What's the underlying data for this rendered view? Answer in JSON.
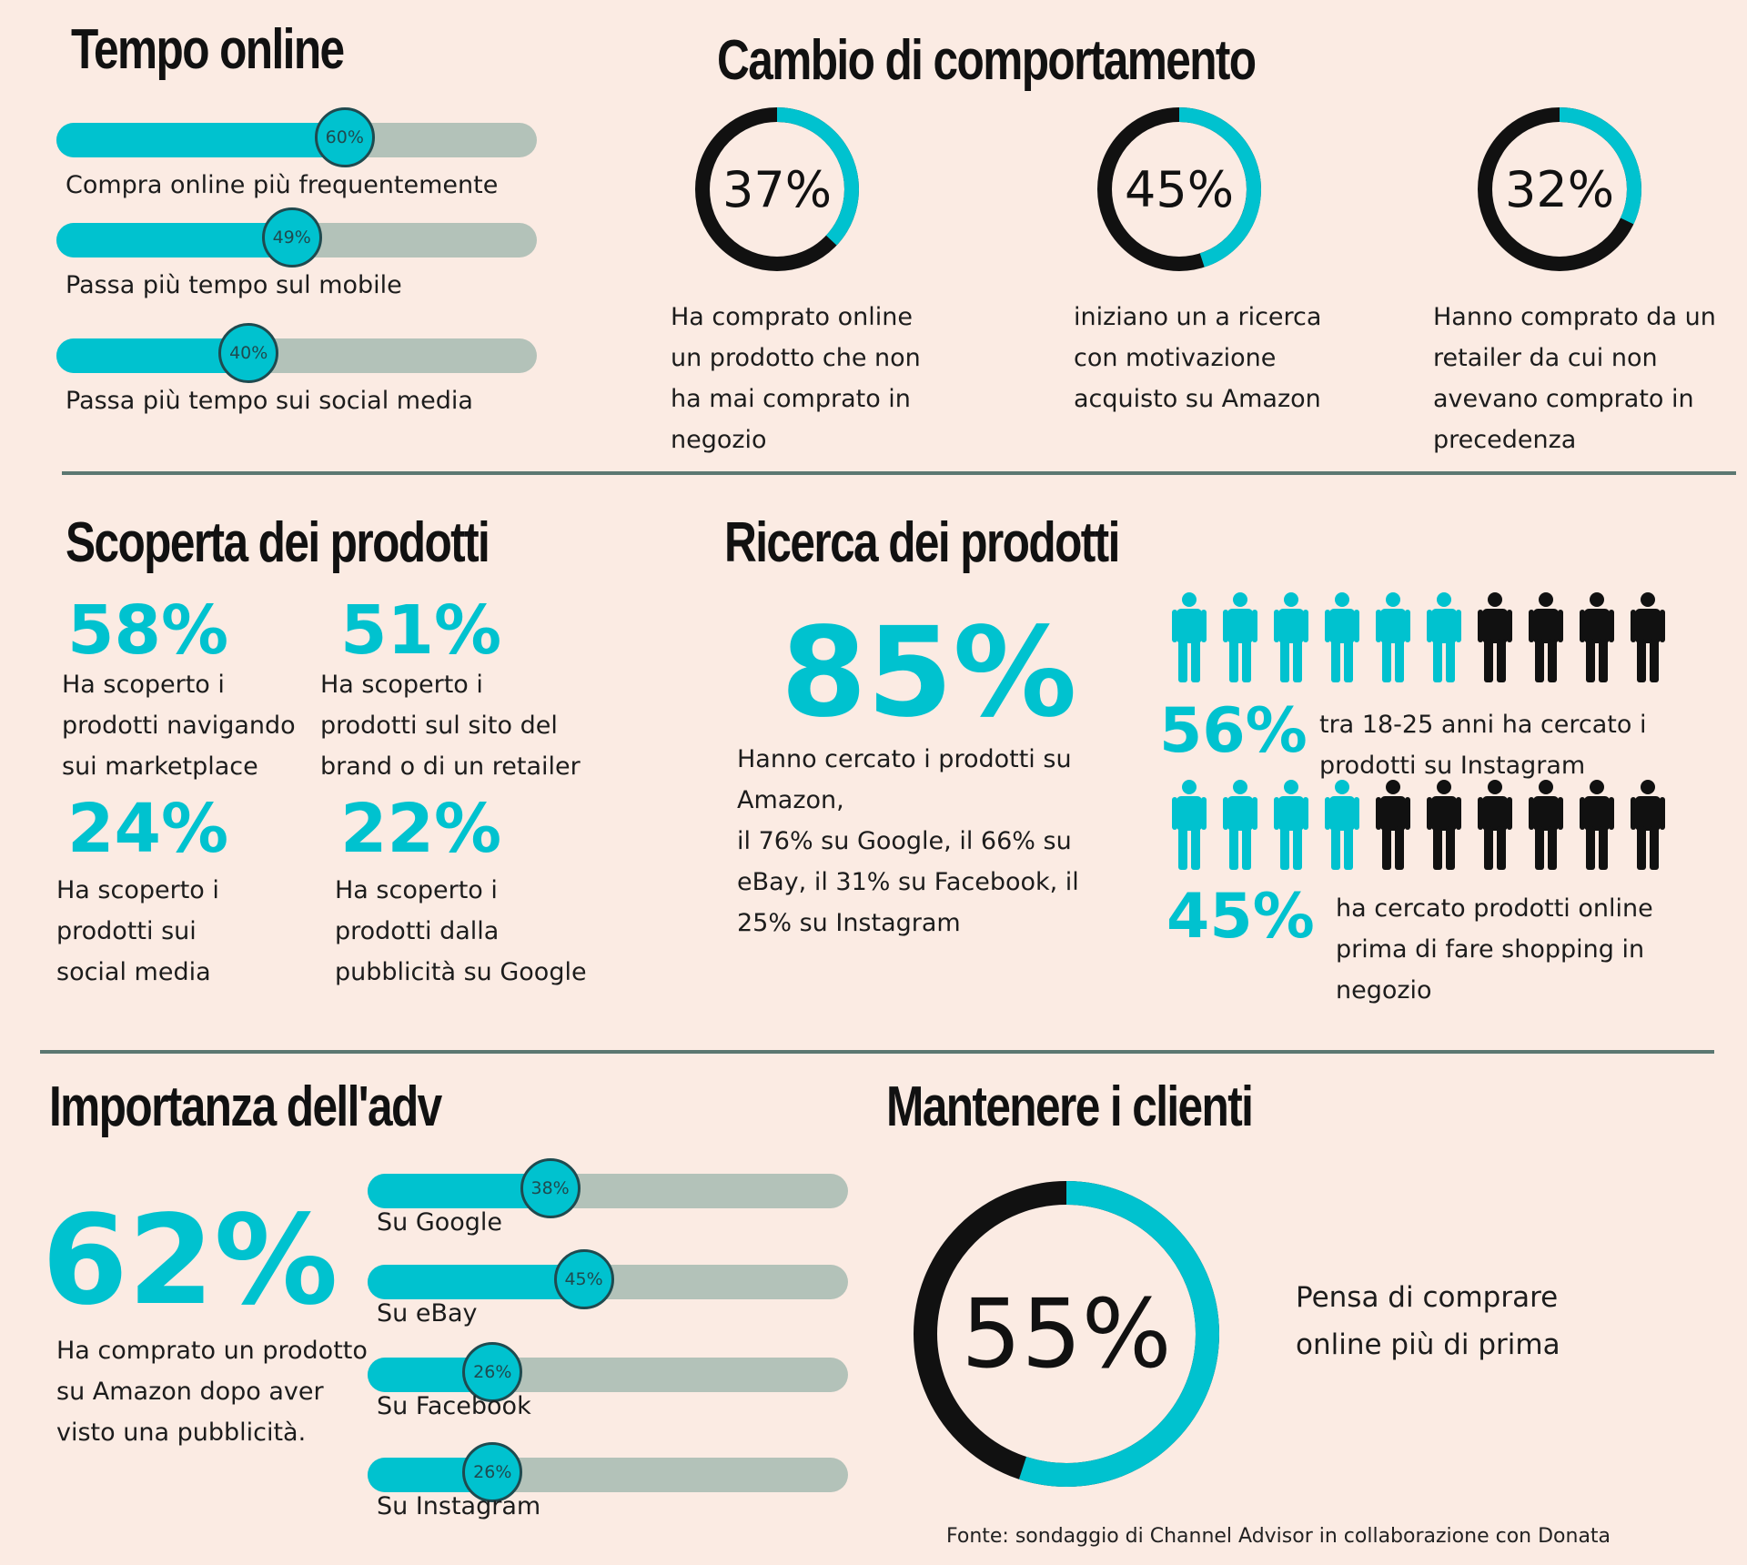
{
  "colors": {
    "accent": "#00c2cf",
    "dark": "#111111",
    "track": "#b3c2b9",
    "background": "#fbebe3",
    "divider": "#5b7771"
  },
  "tempo_online": {
    "title": "Tempo online",
    "bars": [
      {
        "label": "Compra online più frequentemente",
        "value": 60,
        "value_label": "60%"
      },
      {
        "label": "Passa più tempo sul mobile",
        "value": 49,
        "value_label": "49%"
      },
      {
        "label": "Passa più tempo sui social media",
        "value": 40,
        "value_label": "40%"
      }
    ]
  },
  "cambio": {
    "title": "Cambio di comportamento",
    "donuts": [
      {
        "value": 37,
        "label": "37%",
        "lines": [
          "Ha comprato online",
          "un prodotto che non",
          "ha mai comprato in",
          "negozio"
        ]
      },
      {
        "value": 45,
        "label": "45%",
        "lines": [
          "iniziano un a ricerca",
          "con motivazione",
          "acquisto su Amazon"
        ]
      },
      {
        "value": 32,
        "label": "32%",
        "lines": [
          "Hanno comprato da un",
          "retailer da cui non",
          "avevano comprato in",
          "precedenza"
        ]
      }
    ]
  },
  "scoperta": {
    "title": "Scoperta dei prodotti",
    "items": [
      {
        "value": "58%",
        "lines": [
          "Ha scoperto i",
          "prodotti navigando",
          "sui marketplace"
        ]
      },
      {
        "value": "51%",
        "lines": [
          "Ha scoperto i",
          "prodotti sul sito del",
          "brand o di un retailer"
        ]
      },
      {
        "value": "24%",
        "lines": [
          "Ha scoperto i",
          "prodotti sui",
          "social media"
        ]
      },
      {
        "value": "22%",
        "lines": [
          "Ha scoperto i",
          "prodotti dalla",
          "pubblicità su Google"
        ]
      }
    ]
  },
  "ricerca": {
    "title": "Ricerca dei prodotti",
    "big_value": "85%",
    "lines": [
      "Hanno cercato i prodotti su",
      "Amazon,",
      "il 76% su Google, il 66% su",
      "eBay, il 31% su Facebook, il",
      "25% su Instagram"
    ],
    "pictograms": [
      {
        "highlighted": 6,
        "total": 10,
        "value": "56%",
        "lines": [
          "tra 18-25 anni ha cercato i",
          "prodotti su Instagram"
        ]
      },
      {
        "highlighted": 4,
        "total": 10,
        "value": "45%",
        "lines": [
          "ha cercato prodotti online",
          "prima di fare shopping in",
          "negozio"
        ]
      }
    ]
  },
  "adv": {
    "title": "Importanza dell'adv",
    "big_value": "62%",
    "lines": [
      "Ha comprato un prodotto",
      "su Amazon  dopo aver",
      "visto una pubblicità."
    ],
    "bars": [
      {
        "label": "Su Google",
        "value": 38,
        "value_label": "38%"
      },
      {
        "label": "Su eBay",
        "value": 45,
        "value_label": "45%"
      },
      {
        "label": "Su Facebook",
        "value": 26,
        "value_label": "26%"
      },
      {
        "label": "Su Instagram",
        "value": 26,
        "value_label": "26%"
      }
    ]
  },
  "mantenere": {
    "title": "Mantenere i clienti",
    "value": 55,
    "label": "55%",
    "lines": [
      "Pensa di comprare",
      "online più di prima"
    ]
  },
  "fonte": "Fonte: sondaggio di Channel Advisor in collaborazione con Donata",
  "chart_data": [
    {
      "type": "bar",
      "categories": [
        "Compra online più frequentemente",
        "Passa più tempo sul mobile",
        "Passa più tempo sui social media"
      ],
      "values": [
        60,
        49,
        40
      ],
      "title": "Tempo online",
      "ylim": [
        0,
        100
      ]
    },
    {
      "type": "pie",
      "categories": [
        "Ha comprato online un prodotto che non ha mai comprato in negozio",
        "iniziano un a ricerca con motivazione acquisto su Amazon",
        "Hanno comprato da un retailer da cui non avevano comprato in precedenza"
      ],
      "values": [
        37,
        45,
        32
      ],
      "title": "Cambio di comportamento"
    },
    {
      "type": "table",
      "categories": [
        "marketplace",
        "sito del brand o di un retailer",
        "social media",
        "pubblicità su Google"
      ],
      "values": [
        58,
        51,
        24,
        22
      ],
      "title": "Scoperta dei prodotti"
    },
    {
      "type": "table",
      "categories": [
        "Amazon",
        "Google",
        "eBay",
        "Facebook",
        "Instagram"
      ],
      "values": [
        85,
        76,
        66,
        31,
        25
      ],
      "title": "Ricerca dei prodotti"
    },
    {
      "type": "bar",
      "categories": [
        "Su Google",
        "Su eBay",
        "Su Facebook",
        "Su Instagram"
      ],
      "values": [
        38,
        45,
        26,
        26
      ],
      "title": "Importanza dell'adv",
      "ylim": [
        0,
        100
      ]
    },
    {
      "type": "pie",
      "categories": [
        "Pensa di comprare online più di prima"
      ],
      "values": [
        55
      ],
      "title": "Mantenere i clienti"
    }
  ]
}
